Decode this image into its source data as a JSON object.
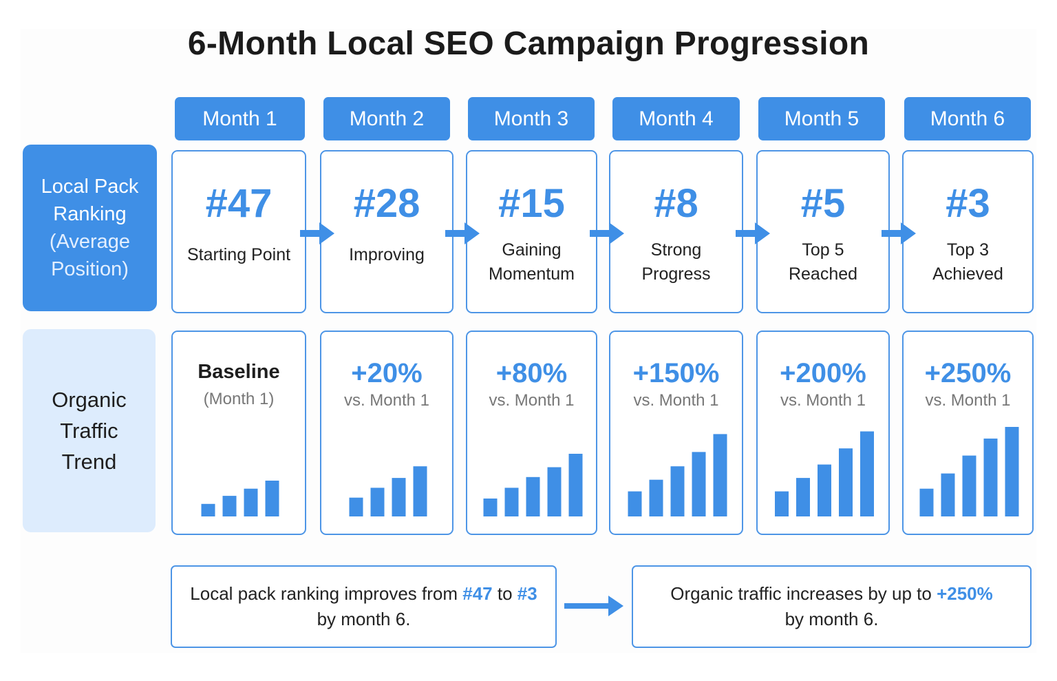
{
  "title": "6-Month Local SEO Campaign Progression",
  "colors": {
    "accent": "#3f8fe6",
    "light_fill": "#ddecfd",
    "text": "#1e1e1e"
  },
  "months": [
    "Month 1",
    "Month 2",
    "Month 3",
    "Month 4",
    "Month 5",
    "Month 6"
  ],
  "rows": {
    "ranking": {
      "label": [
        "Local Pack",
        "Ranking"
      ],
      "sub": [
        "(Average",
        "Position)"
      ]
    },
    "traffic": {
      "label": [
        "Organic",
        "Traffic",
        "Trend"
      ]
    }
  },
  "ranking": [
    {
      "value": "#47",
      "label": [
        "Starting Point"
      ]
    },
    {
      "value": "#28",
      "label": [
        "Improving"
      ]
    },
    {
      "value": "#15",
      "label": [
        "Gaining",
        "Momentum"
      ]
    },
    {
      "value": "#8",
      "label": [
        "Strong",
        "Progress"
      ]
    },
    {
      "value": "#5",
      "label": [
        "Top 5",
        "Reached"
      ]
    },
    {
      "value": "#3",
      "label": [
        "Top 3",
        "Achieved"
      ]
    }
  ],
  "traffic": [
    {
      "value": "Baseline",
      "sub": "(Month 1)",
      "bars": [
        0.14,
        0.23,
        0.31,
        0.4
      ]
    },
    {
      "value": "+20%",
      "sub": "vs. Month 1",
      "bars": [
        0.21,
        0.32,
        0.43,
        0.56
      ]
    },
    {
      "value": "+80%",
      "sub": "vs. Month 1",
      "bars": [
        0.2,
        0.32,
        0.44,
        0.55,
        0.7
      ]
    },
    {
      "value": "+150%",
      "sub": "vs. Month 1",
      "bars": [
        0.28,
        0.41,
        0.56,
        0.72,
        0.92
      ]
    },
    {
      "value": "+200%",
      "sub": "vs. Month 1",
      "bars": [
        0.28,
        0.43,
        0.58,
        0.76,
        0.95
      ]
    },
    {
      "value": "+250%",
      "sub": "vs. Month 1",
      "bars": [
        0.31,
        0.48,
        0.68,
        0.87,
        1.0
      ]
    }
  ],
  "notes": {
    "ranking": {
      "pre": "Local pack ranking improves from ",
      "from": "#47",
      "mid": " to ",
      "to": "#3",
      "post": "by month 6."
    },
    "traffic": {
      "pre": "Organic traffic increases by up to ",
      "value": "+250%",
      "post": "by month 6."
    }
  }
}
